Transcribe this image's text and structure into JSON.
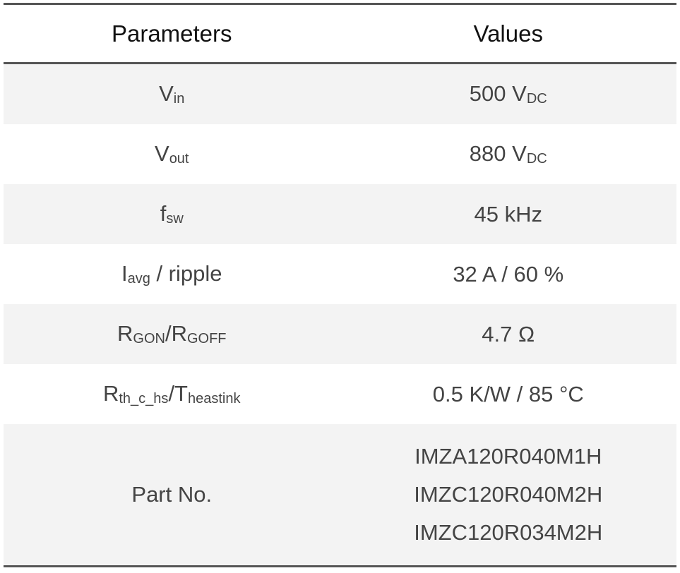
{
  "header": {
    "parameters": "Parameters",
    "values": "Values"
  },
  "rows": [
    {
      "param": "V",
      "param_sub": "in",
      "value": "500 V",
      "value_sub": "DC"
    },
    {
      "param": "V",
      "param_sub": "out",
      "value": "880 V",
      "value_sub": "DC"
    },
    {
      "param": "f",
      "param_sub": "sw",
      "value": "45 kHz"
    },
    {
      "param_pre_sub": "I",
      "param_sub": "avg",
      "param_post": " / ripple",
      "value": "32 A / 60 %"
    },
    {
      "param": "R",
      "param_sub": "GON",
      "param_post": "/R",
      "param_sub2": "GOFF",
      "value": "4.7 Ω"
    },
    {
      "param": "R",
      "param_sub": "th_c_hs",
      "param_post": "/T",
      "param_sub2": "heastink",
      "value": "0.5 K/W / 85 °C"
    }
  ],
  "part_row": {
    "param": "Part No.",
    "values": [
      "IMZA120R040M1H",
      "IMZC120R040M2H",
      "IMZC120R034M2H"
    ]
  },
  "colors": {
    "rule": "#555555",
    "shade": "#f3f3f3",
    "text": "#444444"
  }
}
